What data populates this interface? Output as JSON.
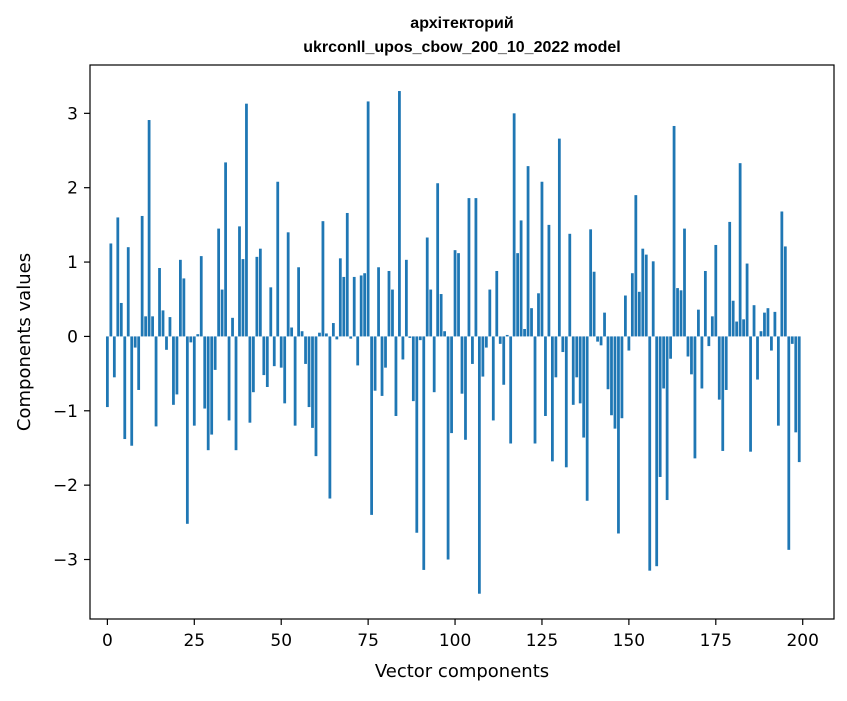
{
  "chart_data": {
    "type": "bar",
    "title": "архітекторий\nukrconll_upos_cbow_200_10_2022 model",
    "title_lines": [
      "архітекторий",
      "ukrconll_upos_cbow_200_10_2022 model"
    ],
    "xlabel": "Vector components",
    "ylabel": "Components values",
    "xlim": [
      -5,
      209
    ],
    "ylim": [
      -3.8,
      3.65
    ],
    "xticks": [
      0,
      25,
      50,
      75,
      100,
      125,
      150,
      175,
      200
    ],
    "xtick_labels": [
      "0",
      "25",
      "50",
      "75",
      "100",
      "125",
      "150",
      "175",
      "200"
    ],
    "yticks": [
      -3,
      -2,
      -1,
      0,
      1,
      2,
      3
    ],
    "ytick_labels": [
      "−3",
      "−2",
      "−1",
      "0",
      "1",
      "2",
      "3"
    ],
    "grid": false,
    "bar_color": "#1f77b4",
    "values": [
      -0.95,
      1.25,
      -0.55,
      1.6,
      0.45,
      -1.38,
      1.2,
      -1.47,
      -0.15,
      -0.72,
      1.62,
      0.27,
      2.91,
      0.27,
      -1.21,
      0.92,
      0.35,
      -0.18,
      0.26,
      -0.92,
      -0.78,
      1.03,
      0.78,
      -2.52,
      -0.08,
      -1.2,
      0.03,
      1.08,
      -0.97,
      -1.53,
      -1.32,
      -0.45,
      1.45,
      0.63,
      2.34,
      -1.13,
      0.25,
      -1.53,
      1.48,
      1.04,
      3.13,
      -1.16,
      -0.75,
      1.07,
      1.18,
      -0.52,
      -0.68,
      0.66,
      -0.4,
      2.08,
      -0.42,
      -0.9,
      1.4,
      0.12,
      -1.2,
      0.93,
      0.07,
      -0.37,
      -0.95,
      -1.23,
      -1.61,
      0.05,
      1.55,
      0.04,
      -2.18,
      0.18,
      -0.04,
      1.05,
      0.8,
      1.66,
      -0.03,
      0.8,
      -0.39,
      0.82,
      0.85,
      3.16,
      -2.4,
      -0.73,
      0.93,
      -0.8,
      -0.42,
      0.88,
      0.63,
      -1.07,
      3.3,
      -0.31,
      1.03,
      -0.02,
      -0.87,
      -2.64,
      -0.05,
      -3.14,
      1.33,
      0.63,
      -0.75,
      2.06,
      0.57,
      0.07,
      -3.0,
      -1.3,
      1.16,
      1.12,
      -0.77,
      -1.39,
      1.86,
      -0.37,
      1.86,
      -3.46,
      -0.54,
      -0.15,
      0.63,
      -1.13,
      0.88,
      -0.1,
      -0.65,
      0.02,
      -1.44,
      3.0,
      1.12,
      1.56,
      0.1,
      2.29,
      0.38,
      -1.44,
      0.58,
      2.08,
      -1.07,
      1.5,
      -1.68,
      -0.55,
      2.66,
      -0.21,
      -1.76,
      1.38,
      -0.92,
      -0.55,
      -0.9,
      -1.36,
      -2.21,
      1.44,
      0.87,
      -0.07,
      -0.12,
      0.32,
      -0.71,
      -1.06,
      -1.24,
      -2.65,
      -1.1,
      0.55,
      -0.19,
      0.85,
      1.9,
      0.6,
      1.18,
      1.1,
      -3.15,
      1.01,
      -3.09,
      -1.89,
      -0.7,
      -2.2,
      -0.3,
      2.83,
      0.65,
      0.62,
      1.45,
      -0.27,
      -0.51,
      -1.64,
      0.36,
      -0.7,
      0.88,
      -0.13,
      0.27,
      1.23,
      -0.85,
      -1.54,
      -0.72,
      1.54,
      0.48,
      0.2,
      2.33,
      0.23,
      0.98,
      -1.55,
      0.42,
      -0.58,
      0.07,
      0.32,
      0.38,
      -0.19,
      0.33,
      -1.2,
      1.68,
      1.21,
      -2.87,
      -0.1,
      -1.29,
      -1.69
    ]
  }
}
